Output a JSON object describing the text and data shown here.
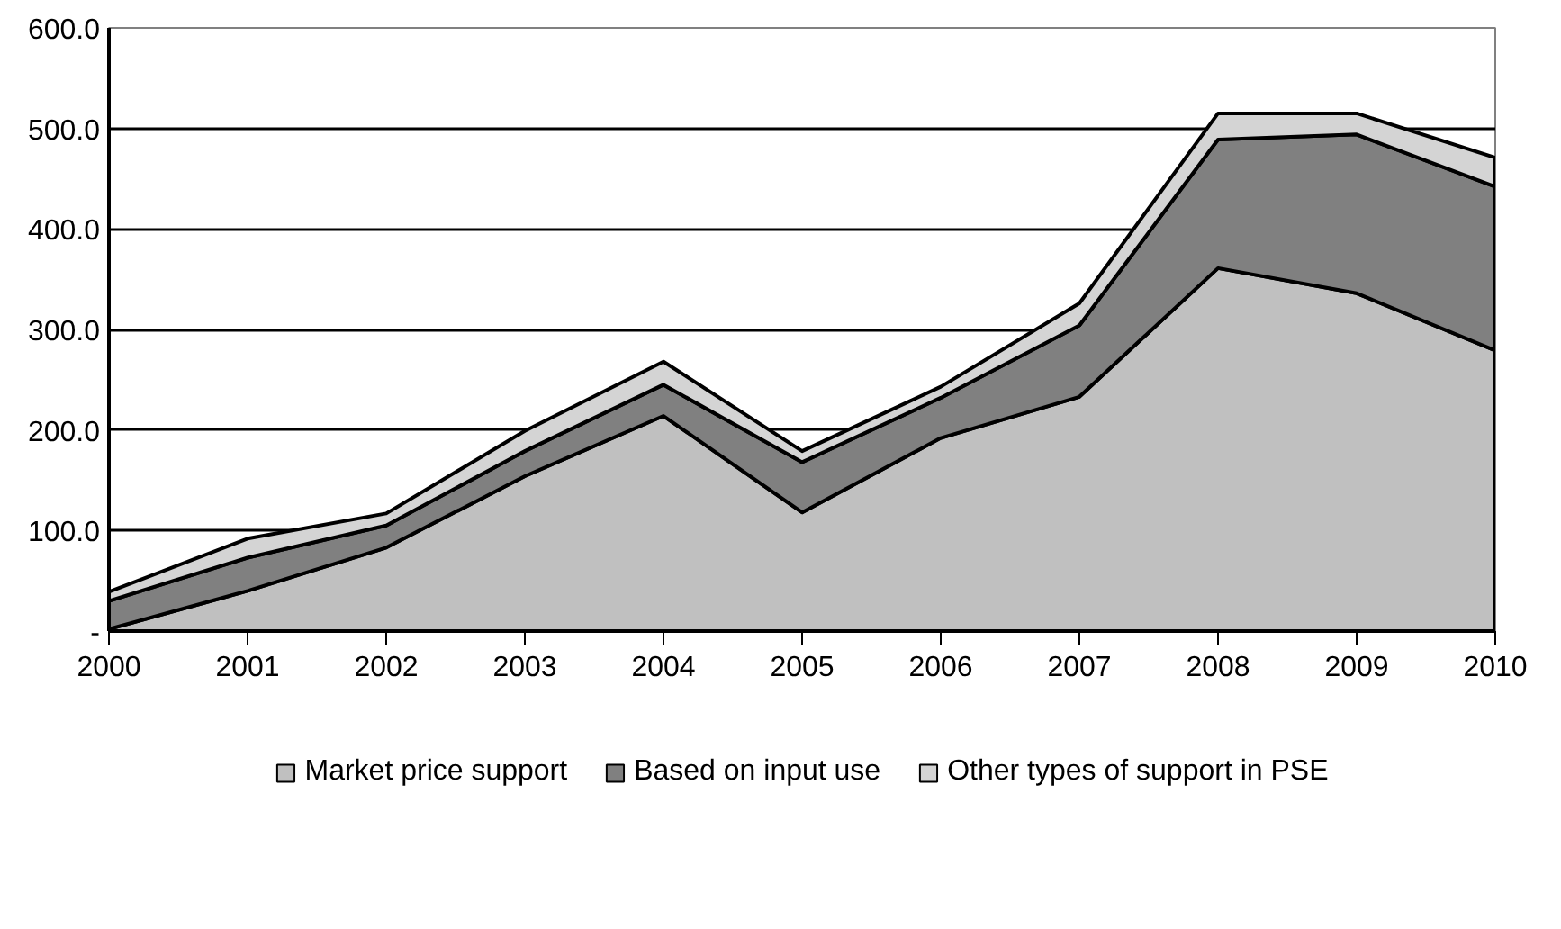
{
  "chart_data": {
    "type": "area",
    "stacked": true,
    "categories": [
      "2000",
      "2001",
      "2002",
      "2003",
      "2004",
      "2005",
      "2006",
      "2007",
      "2008",
      "2009",
      "2010"
    ],
    "series": [
      {
        "name": "Market price support",
        "color": "#c0c0c0",
        "values": [
          2,
          40,
          83,
          154,
          214,
          118,
          192,
          233,
          361,
          336,
          279
        ]
      },
      {
        "name": "Based on input use",
        "color": "#808080",
        "values": [
          28,
          33,
          22,
          25,
          31,
          50,
          40,
          71,
          128,
          158,
          163
        ]
      },
      {
        "name": "Other types of support in PSE",
        "color": "#d4d4d4",
        "values": [
          9,
          19,
          12,
          20,
          23,
          11,
          11,
          22,
          26,
          21,
          29
        ]
      }
    ],
    "ylim": [
      0,
      600
    ],
    "yticks": [
      {
        "value": 0,
        "label": "-"
      },
      {
        "value": 100,
        "label": "100.0"
      },
      {
        "value": 200,
        "label": "200.0"
      },
      {
        "value": 300,
        "label": "300.0"
      },
      {
        "value": 400,
        "label": "400.0"
      },
      {
        "value": 500,
        "label": "500.0"
      },
      {
        "value": 600,
        "label": "600.0"
      }
    ],
    "grid": "y",
    "legend": "bottom"
  }
}
